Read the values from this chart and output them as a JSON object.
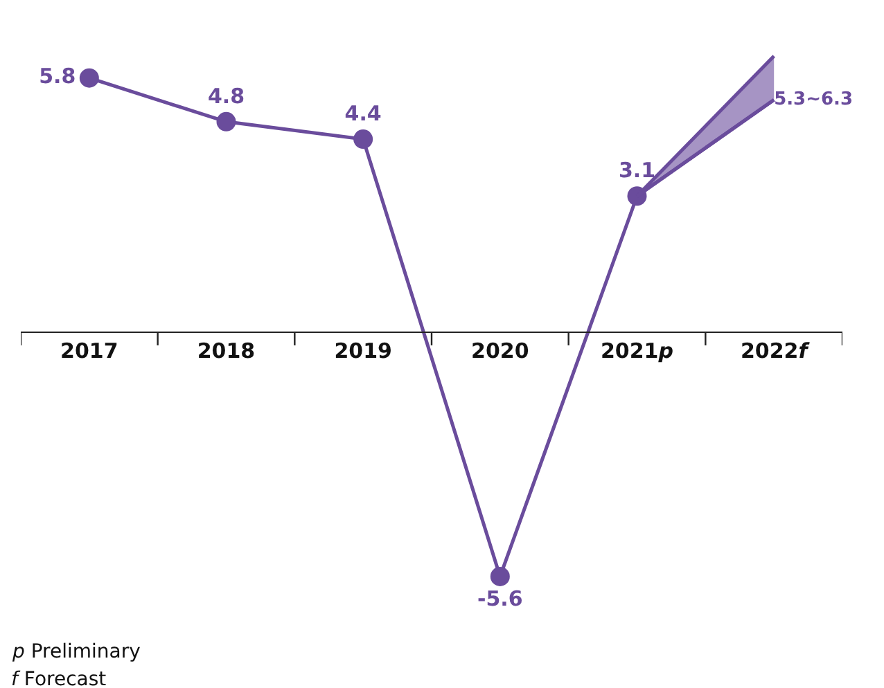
{
  "chart_data": {
    "type": "line",
    "categories": [
      "2017",
      "2018",
      "2019",
      "2020",
      "2021p",
      "2022f"
    ],
    "series": [
      {
        "color": "#6a4c9c",
        "marker": "circle",
        "values": [
          5.8,
          4.8,
          4.4,
          -5.6,
          3.1,
          null
        ]
      },
      {
        "color": "#6a4c9c",
        "marker": "none",
        "values": [
          null,
          null,
          null,
          null,
          3.1,
          5.3
        ],
        "lower": [
          null,
          null,
          null,
          null,
          3.1,
          5.3
        ],
        "upper": [
          null,
          null,
          null,
          null,
          3.1,
          6.3
        ],
        "value_labels": [
          null,
          null,
          null,
          null,
          null,
          "5.3~6.3"
        ]
      }
    ],
    "data_labels": true,
    "annotations": [
      "p Preliminary",
      "f Forecast"
    ]
  }
}
